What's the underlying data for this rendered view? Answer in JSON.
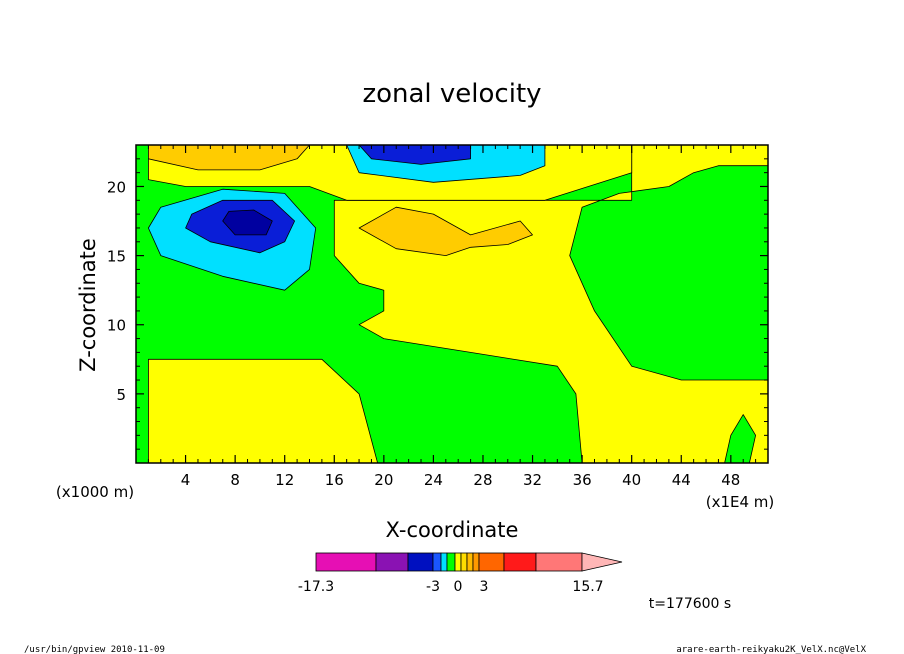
{
  "chart_data": {
    "type": "heatmap",
    "title": "zonal velocity",
    "xlabel": "X-coordinate",
    "ylabel": "Z-coordinate",
    "x_unit_left": "(x1000 m)",
    "x_unit_right": "(x1E4 m)",
    "xlim": [
      0,
      51
    ],
    "ylim": [
      0,
      23
    ],
    "x_ticks": [
      4,
      8,
      12,
      16,
      20,
      24,
      28,
      32,
      36,
      40,
      44,
      48
    ],
    "y_ticks": [
      5,
      10,
      15,
      20
    ],
    "regions": [
      {
        "level": "yellow",
        "points": [
          [
            1,
            0
          ],
          [
            1,
            7.5
          ],
          [
            15,
            7.5
          ],
          [
            18,
            5
          ],
          [
            19.5,
            0
          ]
        ]
      },
      {
        "level": "yellow",
        "points": [
          [
            16,
            19
          ],
          [
            40,
            19
          ],
          [
            40,
            23
          ],
          [
            51,
            23
          ],
          [
            51,
            21.5
          ],
          [
            47,
            21.5
          ],
          [
            45,
            21
          ],
          [
            43,
            20
          ],
          [
            39,
            19.5
          ],
          [
            36,
            18.5
          ],
          [
            35,
            15
          ],
          [
            37,
            11
          ],
          [
            40,
            7
          ],
          [
            44,
            6
          ],
          [
            51,
            6
          ],
          [
            51,
            0
          ],
          [
            36,
            0
          ],
          [
            35.5,
            5
          ],
          [
            34,
            7
          ],
          [
            27,
            8
          ],
          [
            20,
            9
          ],
          [
            18,
            10
          ],
          [
            20,
            11
          ],
          [
            20,
            12.5
          ],
          [
            18,
            13
          ],
          [
            16,
            15
          ]
        ]
      },
      {
        "level": "yellow",
        "points": [
          [
            1,
            23
          ],
          [
            1,
            20.5
          ],
          [
            4,
            20
          ],
          [
            14,
            20
          ],
          [
            17,
            19
          ],
          [
            33,
            19
          ],
          [
            40,
            21
          ],
          [
            40,
            23
          ]
        ]
      },
      {
        "level": "light-orange",
        "points": [
          [
            18,
            17
          ],
          [
            21,
            18.5
          ],
          [
            24,
            18
          ],
          [
            27,
            16.5
          ],
          [
            31,
            17.5
          ],
          [
            32,
            16.5
          ],
          [
            30,
            15.8
          ],
          [
            27,
            15.6
          ],
          [
            25,
            15
          ],
          [
            21,
            15.5
          ]
        ]
      },
      {
        "level": "light-orange",
        "points": [
          [
            1,
            23
          ],
          [
            1,
            22
          ],
          [
            5,
            21.2
          ],
          [
            10,
            21.2
          ],
          [
            13,
            22
          ],
          [
            14,
            23
          ]
        ]
      },
      {
        "level": "cyan",
        "points": [
          [
            1,
            17
          ],
          [
            2,
            15
          ],
          [
            7,
            13.5
          ],
          [
            12,
            12.5
          ],
          [
            14,
            14
          ],
          [
            14.5,
            17
          ],
          [
            12,
            19.5
          ],
          [
            7,
            19.8
          ],
          [
            2,
            18.5
          ]
        ]
      },
      {
        "level": "blue",
        "points": [
          [
            4,
            17
          ],
          [
            6,
            16
          ],
          [
            10,
            15.2
          ],
          [
            12,
            16
          ],
          [
            12.8,
            17.5
          ],
          [
            11,
            19
          ],
          [
            7,
            19
          ],
          [
            4.5,
            18
          ]
        ]
      },
      {
        "level": "navy",
        "points": [
          [
            7,
            17.5
          ],
          [
            8,
            16.5
          ],
          [
            10.5,
            16.5
          ],
          [
            11,
            17.5
          ],
          [
            9.5,
            18.3
          ],
          [
            7.5,
            18.2
          ]
        ]
      },
      {
        "level": "cyan",
        "points": [
          [
            17,
            23
          ],
          [
            18,
            21
          ],
          [
            24,
            20.3
          ],
          [
            31,
            20.8
          ],
          [
            33,
            21.5
          ],
          [
            33,
            23
          ]
        ]
      },
      {
        "level": "blue",
        "points": [
          [
            18,
            23
          ],
          [
            19,
            22
          ],
          [
            23,
            21.6
          ],
          [
            27,
            22
          ],
          [
            27,
            23
          ]
        ]
      },
      {
        "level": "green",
        "points": [
          [
            47.5,
            0
          ],
          [
            48,
            2
          ],
          [
            49,
            3.5
          ],
          [
            50,
            2
          ],
          [
            49.5,
            0
          ]
        ]
      }
    ]
  },
  "colorbar": {
    "labels": [
      "-17.3",
      "-3",
      "0",
      "3",
      "15.7"
    ],
    "colors": [
      "#e60fb4",
      "#8a12b3",
      "#0010c0",
      "#1a56ff",
      "#00dfff",
      "#00ff00",
      "#ffff00",
      "#ffdd00",
      "#ffbb00",
      "#ff9900",
      "#ff6600",
      "#ff1a1a",
      "#ff7777",
      "#ffb6b6"
    ]
  },
  "colors": {
    "navy": "#0000a0",
    "blue": "#0a1ed7",
    "cyan": "#00e0ff",
    "green": "#00ff00",
    "yellow": "#ffff00",
    "light-orange": "#ffcc00",
    "orange": "#ff9c19"
  },
  "time_label": "t=177600 s",
  "footer": {
    "left": "/usr/bin/gpview  2010-11-09",
    "right": "arare-earth-reikyaku2K_VelX.nc@VelX"
  }
}
